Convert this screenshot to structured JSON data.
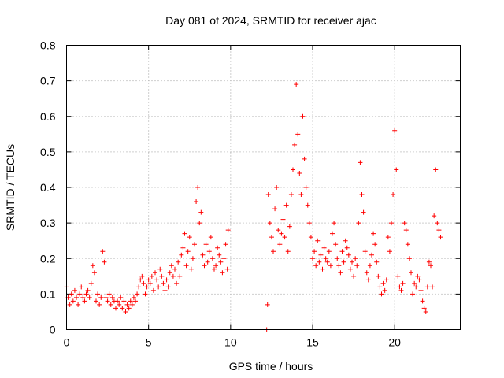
{
  "chart_data": {
    "type": "scatter",
    "title": "Day 081 of 2024, SRMTID for receiver ajac",
    "xlabel": "GPS time / hours",
    "ylabel": "SRMTID / TECUs",
    "xlim": [
      0,
      24
    ],
    "ylim": [
      0,
      0.8
    ],
    "xticks": [
      0,
      5,
      10,
      15,
      20
    ],
    "xtick_labels": [
      "0",
      "5",
      "10",
      "15",
      "20"
    ],
    "yticks": [
      0,
      0.1,
      0.2,
      0.3,
      0.4,
      0.5,
      0.6,
      0.7,
      0.8
    ],
    "ytick_labels": [
      "0",
      "0.1",
      "0.2",
      "0.3",
      "0.4",
      "0.5",
      "0.6",
      "0.7",
      "0.8"
    ],
    "grid": true,
    "marker": "+",
    "color": "#ff0000",
    "series": [
      {
        "name": "SRMTID",
        "x": [
          0.0,
          0.1,
          0.2,
          0.3,
          0.4,
          0.5,
          0.6,
          0.7,
          0.8,
          0.9,
          1.0,
          1.1,
          1.2,
          1.3,
          1.4,
          1.5,
          1.6,
          1.7,
          1.8,
          1.9,
          2.0,
          2.1,
          2.2,
          2.3,
          2.4,
          2.5,
          2.6,
          2.7,
          2.8,
          2.9,
          3.0,
          3.1,
          3.2,
          3.3,
          3.4,
          3.5,
          3.6,
          3.7,
          3.8,
          3.9,
          4.0,
          4.1,
          4.2,
          4.3,
          4.4,
          4.5,
          4.6,
          4.7,
          4.8,
          4.9,
          5.0,
          5.1,
          5.2,
          5.3,
          5.4,
          5.5,
          5.6,
          5.7,
          5.8,
          5.9,
          6.0,
          6.1,
          6.2,
          6.3,
          6.4,
          6.5,
          6.6,
          6.7,
          6.8,
          6.9,
          7.0,
          7.1,
          7.2,
          7.3,
          7.4,
          7.5,
          7.6,
          7.7,
          7.8,
          7.9,
          8.0,
          8.1,
          8.2,
          8.3,
          8.4,
          8.5,
          8.6,
          8.7,
          8.8,
          8.9,
          9.0,
          9.1,
          9.2,
          9.3,
          9.4,
          9.5,
          9.6,
          9.7,
          9.8,
          9.85,
          12.2,
          12.25,
          12.3,
          12.4,
          12.5,
          12.6,
          12.7,
          12.8,
          12.9,
          13.0,
          13.1,
          13.2,
          13.3,
          13.4,
          13.5,
          13.6,
          13.7,
          13.8,
          13.9,
          14.0,
          14.1,
          14.2,
          14.3,
          14.4,
          14.5,
          14.6,
          14.7,
          14.8,
          14.9,
          15.0,
          15.1,
          15.2,
          15.3,
          15.4,
          15.5,
          15.6,
          15.7,
          15.8,
          15.9,
          16.0,
          16.1,
          16.2,
          16.3,
          16.4,
          16.5,
          16.6,
          16.7,
          16.8,
          16.9,
          17.0,
          17.1,
          17.2,
          17.3,
          17.4,
          17.5,
          17.6,
          17.7,
          17.8,
          17.9,
          18.0,
          18.1,
          18.2,
          18.3,
          18.4,
          18.5,
          18.6,
          18.7,
          18.8,
          18.9,
          19.0,
          19.1,
          19.2,
          19.3,
          19.4,
          19.5,
          19.6,
          19.7,
          19.8,
          19.9,
          20.0,
          20.1,
          20.2,
          20.3,
          20.4,
          20.5,
          20.6,
          20.7,
          20.8,
          20.9,
          21.0,
          21.1,
          21.2,
          21.3,
          21.4,
          21.5,
          21.6,
          21.7,
          21.8,
          21.9,
          22.0,
          22.1,
          22.2,
          22.3,
          22.4,
          22.5,
          22.6,
          22.7,
          22.8
        ],
        "y": [
          0.12,
          0.09,
          0.07,
          0.1,
          0.08,
          0.11,
          0.09,
          0.07,
          0.1,
          0.12,
          0.09,
          0.08,
          0.1,
          0.11,
          0.09,
          0.13,
          0.18,
          0.16,
          0.08,
          0.1,
          0.07,
          0.09,
          0.22,
          0.19,
          0.09,
          0.08,
          0.1,
          0.07,
          0.09,
          0.08,
          0.06,
          0.08,
          0.07,
          0.09,
          0.06,
          0.08,
          0.05,
          0.07,
          0.06,
          0.08,
          0.07,
          0.09,
          0.08,
          0.1,
          0.12,
          0.14,
          0.15,
          0.13,
          0.1,
          0.12,
          0.14,
          0.13,
          0.15,
          0.11,
          0.16,
          0.14,
          0.12,
          0.17,
          0.15,
          0.13,
          0.11,
          0.14,
          0.12,
          0.16,
          0.18,
          0.15,
          0.17,
          0.13,
          0.19,
          0.15,
          0.21,
          0.23,
          0.27,
          0.18,
          0.22,
          0.26,
          0.17,
          0.2,
          0.24,
          0.36,
          0.4,
          0.3,
          0.33,
          0.21,
          0.18,
          0.24,
          0.19,
          0.22,
          0.26,
          0.2,
          0.17,
          0.18,
          0.23,
          0.21,
          0.19,
          0.16,
          0.2,
          0.24,
          0.17,
          0.28,
          0.0,
          0.07,
          0.38,
          0.3,
          0.26,
          0.22,
          0.34,
          0.4,
          0.28,
          0.24,
          0.27,
          0.31,
          0.26,
          0.35,
          0.22,
          0.29,
          0.38,
          0.45,
          0.52,
          0.69,
          0.55,
          0.44,
          0.38,
          0.6,
          0.48,
          0.4,
          0.35,
          0.3,
          0.26,
          0.2,
          0.22,
          0.18,
          0.25,
          0.19,
          0.21,
          0.17,
          0.23,
          0.2,
          0.19,
          0.22,
          0.18,
          0.27,
          0.3,
          0.24,
          0.2,
          0.18,
          0.16,
          0.22,
          0.19,
          0.25,
          0.23,
          0.21,
          0.17,
          0.19,
          0.15,
          0.2,
          0.18,
          0.3,
          0.47,
          0.38,
          0.33,
          0.22,
          0.16,
          0.14,
          0.18,
          0.21,
          0.27,
          0.24,
          0.19,
          0.15,
          0.12,
          0.1,
          0.13,
          0.11,
          0.14,
          0.26,
          0.22,
          0.3,
          0.38,
          0.56,
          0.45,
          0.15,
          0.12,
          0.11,
          0.13,
          0.3,
          0.28,
          0.24,
          0.2,
          0.16,
          0.1,
          0.13,
          0.12,
          0.15,
          0.14,
          0.11,
          0.08,
          0.06,
          0.05,
          0.12,
          0.19,
          0.18,
          0.12,
          0.32,
          0.45,
          0.3,
          0.28,
          0.26
        ]
      }
    ]
  }
}
